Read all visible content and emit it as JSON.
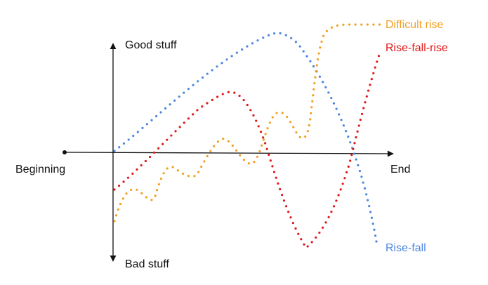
{
  "axes": {
    "top_label": "Good stuff",
    "bottom_label": "Bad stuff",
    "left_label": "Beginning",
    "right_label": "End"
  },
  "curves": [
    {
      "name": "Difficult rise",
      "color": "#f0a020",
      "shape": "wobbly dip then steep climb to a high plateau"
    },
    {
      "name": "Rise-fall-rise",
      "color": "#e01818",
      "shape": "rises to a peak, falls to a deep trough, then climbs above start"
    },
    {
      "name": "Rise-fall",
      "color": "#4a86e0",
      "shape": "steady rise to a high peak, then steep fall to a low end"
    }
  ]
}
